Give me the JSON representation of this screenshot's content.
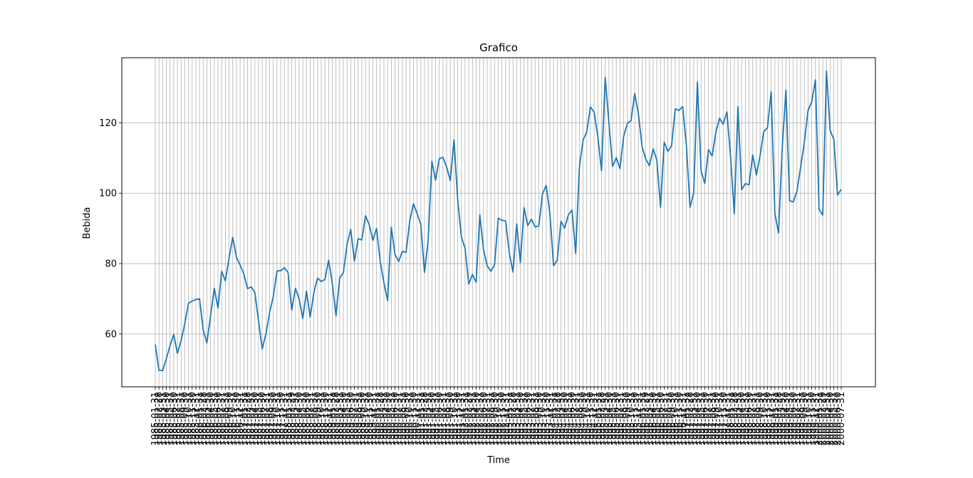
{
  "chart_data": {
    "type": "line",
    "title": "Grafico",
    "xlabel": "Time",
    "ylabel": "Bebida",
    "grid": true,
    "x_start": "1985-01-31",
    "x_end": "2000-07-31",
    "x_frequency": "monthly (month-end)",
    "y_ticks": [
      60,
      80,
      100,
      120
    ],
    "ylim": [
      45,
      138.5
    ],
    "series": [
      {
        "color": "#1f77b4",
        "values": [
          57,
          49.7,
          49.6,
          53,
          56.7,
          59.9,
          54.5,
          58.1,
          63,
          68.7,
          69.4,
          69.8,
          70,
          61.1,
          57.5,
          65.3,
          73,
          67.4,
          77.8,
          75.1,
          81.6,
          87.5,
          81.8,
          79.6,
          77.1,
          72.9,
          73.4,
          71.8,
          63.7,
          55.8,
          60,
          66.1,
          70.7,
          77.9,
          78,
          78.8,
          77.5,
          66.8,
          73,
          70,
          64.4,
          72.2,
          64.8,
          71.8,
          75.9,
          74.9,
          75.5,
          81,
          74.4,
          65.2,
          75.9,
          77.4,
          85.5,
          89.7,
          80.7,
          87.1,
          86.7,
          93.6,
          91.1,
          86.6,
          90,
          80.6,
          74.5,
          69.5,
          90.3,
          82.6,
          80.6,
          83.5,
          83.2,
          92.1,
          97,
          94.2,
          91.1,
          77.5,
          86.6,
          109.1,
          103.7,
          109.8,
          110.2,
          107.4,
          103.6,
          115.2,
          98.1,
          87.6,
          84.3,
          74.2,
          76.9,
          74.7,
          93.9,
          84,
          79.4,
          77.8,
          79.7,
          92.9,
          92.3,
          92.1,
          83,
          77.6,
          91.3,
          80.3,
          95.9,
          90.8,
          92.6,
          90.4,
          90.7,
          99.8,
          102.2,
          94.3,
          79.4,
          81,
          92,
          90.1,
          93.8,
          95.2,
          82.9,
          107.4,
          115.1,
          117.4,
          124.5,
          123,
          116.1,
          106.4,
          132.9,
          120.1,
          107.6,
          110.1,
          107,
          116.1,
          119.8,
          120.6,
          128.3,
          122.6,
          113.2,
          109.7,
          107.8,
          112.6,
          109.4,
          96,
          114.5,
          111.9,
          113.5,
          124,
          123.5,
          124.6,
          113.8,
          96,
          100.1,
          131.6,
          106.4,
          102.8,
          112.4,
          110.6,
          117.3,
          121.3,
          119.6,
          123.1,
          110.3,
          94.2,
          124.6,
          101,
          102.7,
          102.4,
          110.9,
          105.2,
          110.7,
          117.5,
          118.6,
          128.8,
          94.4,
          88.7,
          112.9,
          129.3,
          97.9,
          97.5,
          100.6,
          107.5,
          114.5,
          123.5,
          126,
          132.2,
          95.4,
          93.8,
          134.7,
          117.8,
          115.3,
          99.5,
          101.1
        ]
      }
    ]
  }
}
